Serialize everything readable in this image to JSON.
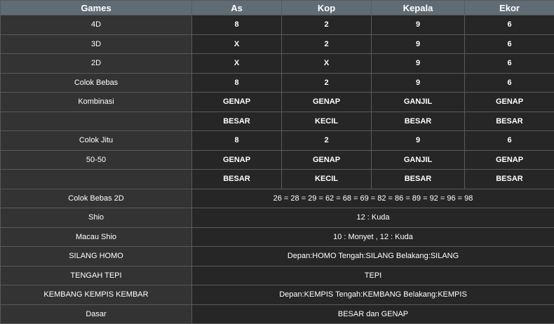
{
  "header": {
    "games": "Games",
    "as": "As",
    "kop": "Kop",
    "kepala": "Kepala",
    "ekor": "Ekor"
  },
  "rows4": [
    {
      "label": "4D",
      "as": "8",
      "kop": "2",
      "kepala": "9",
      "ekor": "6"
    },
    {
      "label": "3D",
      "as": "X",
      "kop": "2",
      "kepala": "9",
      "ekor": "6"
    },
    {
      "label": "2D",
      "as": "X",
      "kop": "X",
      "kepala": "9",
      "ekor": "6"
    },
    {
      "label": "Colok Bebas",
      "as": "8",
      "kop": "2",
      "kepala": "9",
      "ekor": "6"
    },
    {
      "label": "Kombinasi",
      "as": "GENAP",
      "kop": "GENAP",
      "kepala": "GANJIL",
      "ekor": "GENAP"
    },
    {
      "label": "",
      "as": "BESAR",
      "kop": "KECIL",
      "kepala": "BESAR",
      "ekor": "BESAR"
    },
    {
      "label": "Colok Jitu",
      "as": "8",
      "kop": "2",
      "kepala": "9",
      "ekor": "6"
    },
    {
      "label": "50-50",
      "as": "GENAP",
      "kop": "GENAP",
      "kepala": "GANJIL",
      "ekor": "GENAP"
    },
    {
      "label": "",
      "as": "BESAR",
      "kop": "KECIL",
      "kepala": "BESAR",
      "ekor": "BESAR"
    }
  ],
  "rowsWide": [
    {
      "label": "Colok Bebas 2D",
      "value": "26 = 28 = 29 = 62 = 68 = 69 = 82 = 86 = 89 = 92 = 96 = 98"
    },
    {
      "label": "Shio",
      "value": "12 : Kuda"
    },
    {
      "label": "Macau Shio",
      "value": "10 : Monyet , 12 : Kuda"
    },
    {
      "label": "SILANG HOMO",
      "value": "Depan:HOMO Tengah:SILANG Belakang:SILANG"
    },
    {
      "label": "TENGAH TEPI",
      "value": "TEPI"
    },
    {
      "label": "KEMBANG KEMPIS KEMBAR",
      "value": "Depan:KEMPIS Tengah:KEMBANG Belakang:KEMPIS"
    },
    {
      "label": "Dasar",
      "value": "BESAR dan GENAP"
    }
  ]
}
